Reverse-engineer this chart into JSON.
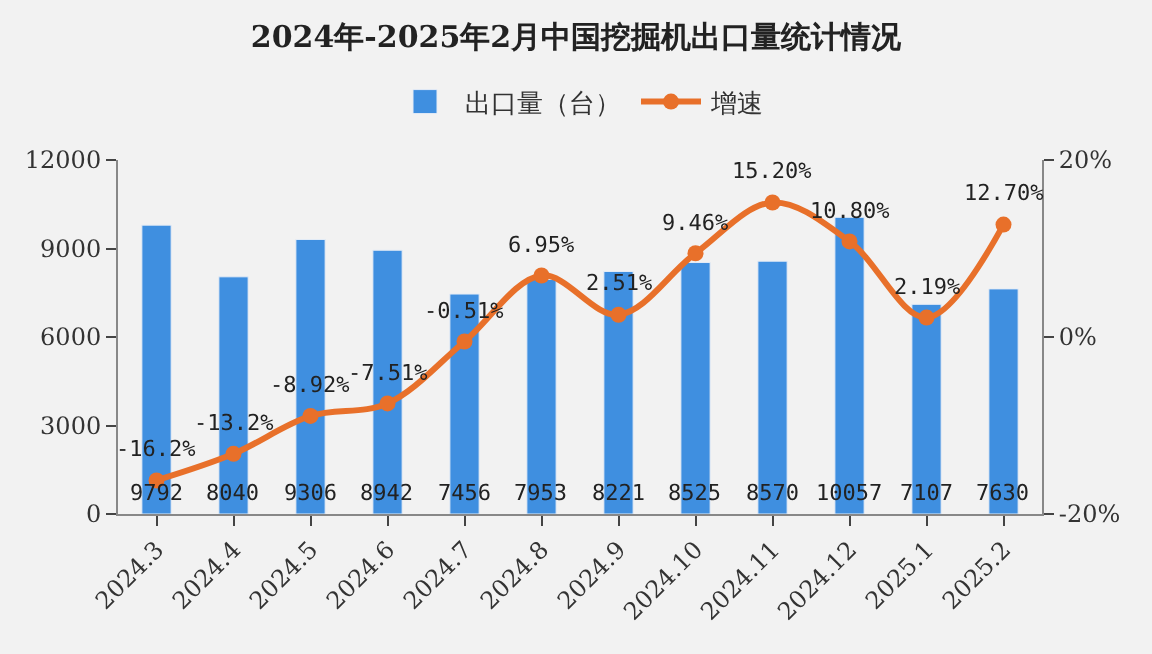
{
  "chart_data": {
    "type": "bar",
    "title": "2024年-2025年2月中国挖掘机出口量统计情况",
    "categories": [
      "2024.3",
      "2024.4",
      "2024.5",
      "2024.6",
      "2024.7",
      "2024.8",
      "2024.9",
      "2024.10",
      "2024.11",
      "2024.12",
      "2025.1",
      "2025.2"
    ],
    "series": [
      {
        "name": "出口量（台）",
        "color": "#3f8fe0",
        "values": [
          9792,
          8040,
          9306,
          8942,
          7456,
          7953,
          8221,
          8525,
          8570,
          10057,
          7107,
          7630
        ]
      },
      {
        "name": "增速",
        "type": "line",
        "axis": "y2",
        "color": "#e8702a",
        "values": [
          -16.2,
          -13.2,
          -8.92,
          -7.51,
          -0.51,
          6.95,
          2.51,
          9.46,
          15.2,
          10.8,
          2.19,
          12.7
        ],
        "value_labels": [
          "-16.2%",
          "-13.2%",
          "-8.92%",
          "-7.51%",
          "-0.51%",
          "6.95%",
          "2.51%",
          "9.46%",
          "15.20%",
          "10.80%",
          "2.19%",
          "12.70%"
        ]
      }
    ],
    "ylim": [
      0,
      12000
    ],
    "yticks": [
      0,
      3000,
      6000,
      9000,
      12000
    ],
    "y2lim": [
      -20,
      20
    ],
    "y2ticks": [
      {
        "value": -20,
        "label": "-20%"
      },
      {
        "value": 0,
        "label": "0%"
      },
      {
        "value": 20,
        "label": "20%"
      }
    ],
    "data_labels": true,
    "marker": "circle",
    "legend": "top",
    "grid": false
  }
}
